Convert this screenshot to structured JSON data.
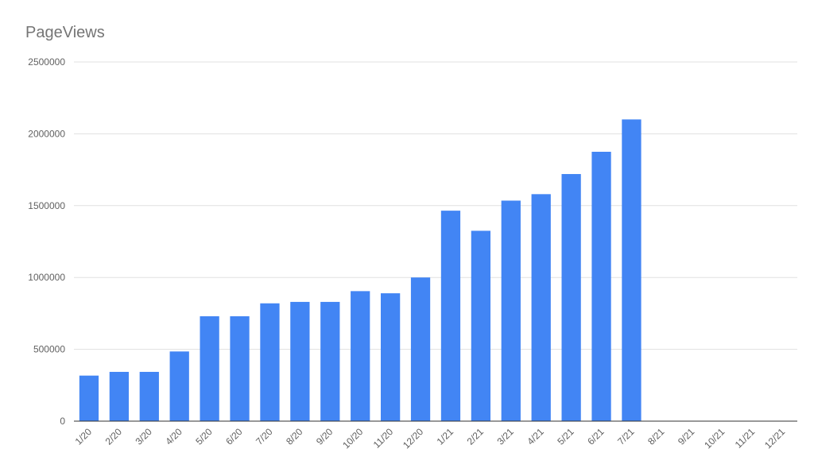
{
  "chart_data": {
    "type": "bar",
    "title": "PageViews",
    "xlabel": "",
    "ylabel": "",
    "categories": [
      "1/20",
      "2/20",
      "3/20",
      "4/20",
      "5/20",
      "6/20",
      "7/20",
      "8/20",
      "9/20",
      "10/20",
      "11/20",
      "12/20",
      "1/21",
      "2/21",
      "3/21",
      "4/21",
      "5/21",
      "6/21",
      "7/21",
      "8/21",
      "9/21",
      "10/21",
      "11/21",
      "12/21"
    ],
    "values": [
      317000,
      343000,
      343000,
      485000,
      730000,
      730000,
      820000,
      830000,
      830000,
      905000,
      890000,
      1000000,
      1465000,
      1325000,
      1535000,
      1580000,
      1720000,
      1875000,
      2100000,
      null,
      null,
      null,
      null,
      null
    ],
    "ylim": [
      0,
      2500000
    ],
    "yticks": [
      "0",
      "500000",
      "1000000",
      "1500000",
      "2000000",
      "2500000"
    ],
    "grid": true,
    "legend": "none",
    "bar_color": "#4285f4"
  }
}
